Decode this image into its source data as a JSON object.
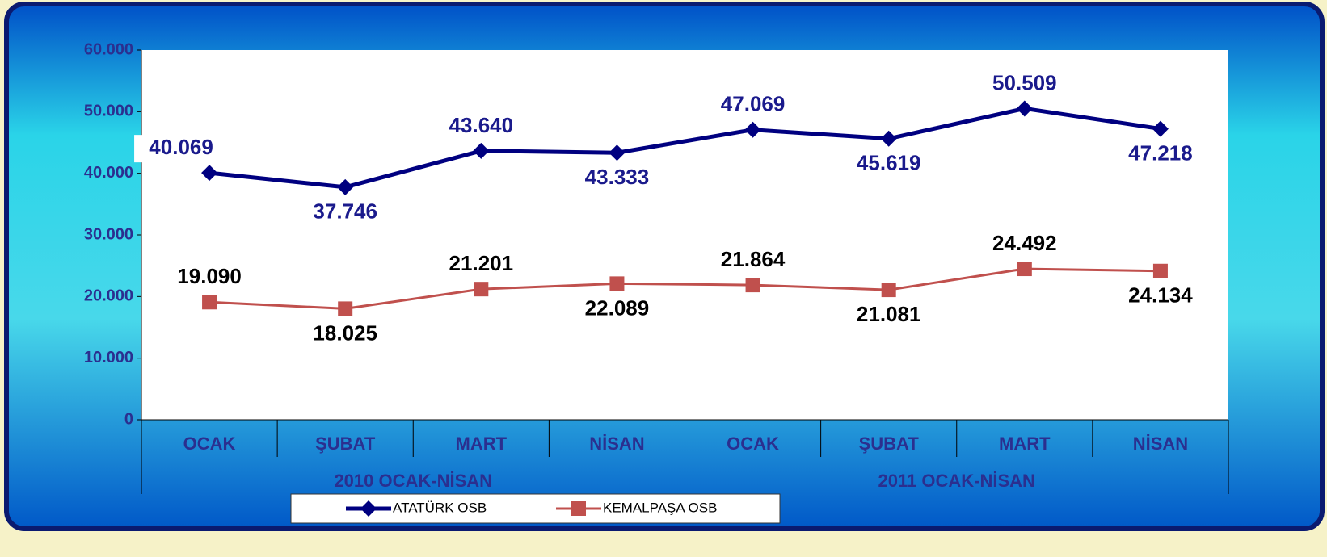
{
  "chart_data": {
    "type": "line",
    "categories": [
      "OCAK",
      "ŞUBAT",
      "MART",
      "NİSAN",
      "OCAK",
      "ŞUBAT",
      "MART",
      "NİSAN"
    ],
    "groups": [
      "2010 OCAK-NİSAN",
      "2011 OCAK-NİSAN"
    ],
    "series": [
      {
        "name": "ATATÜRK OSB",
        "color": "#000080",
        "marker": "diamond",
        "values": [
          40069,
          37746,
          43640,
          43333,
          47069,
          45619,
          50509,
          47218
        ],
        "value_labels": [
          "40.069",
          "37.746",
          "43.640",
          "43.333",
          "47.069",
          "45.619",
          "50.509",
          "47.218"
        ]
      },
      {
        "name": "KEMALPAŞA OSB",
        "color": "#c0504d",
        "marker": "square",
        "values": [
          19090,
          18025,
          21201,
          22089,
          21864,
          21081,
          24492,
          24134
        ],
        "value_labels": [
          "19.090",
          "18.025",
          "21.201",
          "22.089",
          "21.864",
          "21.081",
          "24.492",
          "24.134"
        ]
      }
    ],
    "ylim": [
      0,
      60000
    ],
    "yticks": [
      0,
      {
        "value": 10000,
        "label": "10.000"
      },
      {
        "value": 20000,
        "label": "20.000"
      },
      {
        "value": 30000,
        "label": "30.000"
      },
      {
        "value": 40000,
        "label": "40.000"
      },
      {
        "value": 50000,
        "label": "50.000"
      },
      {
        "value": 60000,
        "label": "60.000"
      }
    ],
    "legend": "bottom"
  }
}
